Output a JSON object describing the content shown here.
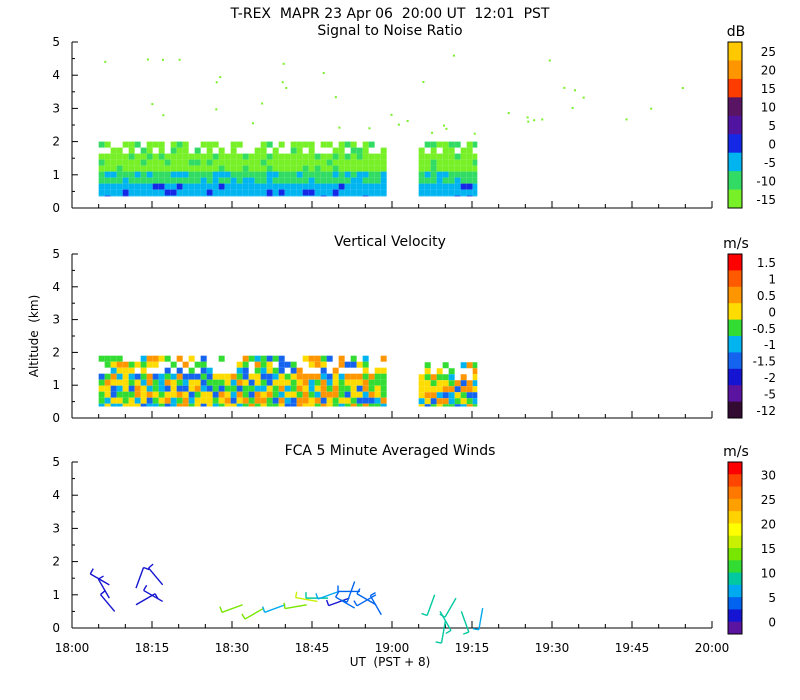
{
  "header": {
    "title": "T-REX  MAPR 23 Apr 06  20:00 UT  12:01  PST"
  },
  "chart_data": [
    {
      "type": "heatmap",
      "title": "Signal to Noise Ratio",
      "ylabel": "",
      "ylim": [
        0,
        5
      ],
      "yticks": [
        "0",
        "1",
        "2",
        "3",
        "4",
        "5"
      ],
      "xlim": [
        "18:00",
        "20:00"
      ],
      "colorbar": {
        "unit": "dB",
        "labels": [
          "25",
          "20",
          "15",
          "10",
          "5",
          "0",
          "-5",
          "-10",
          "-15"
        ],
        "colors": [
          "#ffc800",
          "#ff9600",
          "#ff3c00",
          "#5a1464",
          "#5014a0",
          "#1428e6",
          "#00b4f0",
          "#32dc64",
          "#78f028"
        ]
      },
      "blocks": [
        {
          "x_start": "18:05",
          "x_end": "18:59",
          "alt_bottom": 0.35,
          "alt_top": 2.0
        },
        {
          "x_start": "19:05",
          "x_end": "19:16",
          "alt_bottom": 0.35,
          "alt_top": 2.0
        }
      ]
    },
    {
      "type": "heatmap",
      "title": "Vertical Velocity",
      "ylabel": "Altitude  (km)",
      "ylim": [
        0,
        5
      ],
      "yticks": [
        "0",
        "1",
        "2",
        "3",
        "4",
        "5"
      ],
      "xlim": [
        "18:00",
        "20:00"
      ],
      "colorbar": {
        "unit": "m/s",
        "labels": [
          "1.5",
          "1",
          "0.5",
          "0",
          "-0.5",
          "-1",
          "-1.5",
          "-2",
          "-5",
          "-12"
        ],
        "colors": [
          "#ff0000",
          "#ff5a00",
          "#ff9600",
          "#ffdc00",
          "#32dc32",
          "#00b4f0",
          "#1464f0",
          "#1414d2",
          "#5a14a0",
          "#320a32"
        ]
      },
      "blocks": [
        {
          "x_start": "18:05",
          "x_end": "18:59",
          "alt_bottom": 0.35,
          "alt_top": 1.9
        },
        {
          "x_start": "19:05",
          "x_end": "19:16",
          "alt_bottom": 0.35,
          "alt_top": 1.7
        }
      ]
    },
    {
      "type": "scatter",
      "title": "FCA 5 Minute Averaged Winds",
      "ylabel": "",
      "ylim": [
        0,
        5
      ],
      "yticks": [
        "0",
        "1",
        "2",
        "3",
        "4",
        "5"
      ],
      "xlim": [
        "18:00",
        "20:00"
      ],
      "xticks": [
        "18:00",
        "18:15",
        "18:30",
        "18:45",
        "19:00",
        "19:15",
        "19:30",
        "19:45",
        "20:00"
      ],
      "xlabel": "UT  (PST + 8)",
      "colorbar": {
        "unit": "m/s",
        "labels": [
          "30",
          "25",
          "20",
          "15",
          "10",
          "5",
          "0"
        ],
        "colors": [
          "#ff0000",
          "#ff4600",
          "#ff7800",
          "#ffa000",
          "#ffd200",
          "#ffff00",
          "#c8f000",
          "#78e600",
          "#32dc32",
          "#00c8a0",
          "#00aaf0",
          "#0064f0",
          "#1414d2",
          "#5a14a0"
        ]
      },
      "barbs": [
        {
          "t": "18:07",
          "alt": 1.3,
          "speed": 2,
          "dir": 300
        },
        {
          "t": "18:07",
          "alt": 0.9,
          "speed": 3,
          "dir": 330
        },
        {
          "t": "18:08",
          "alt": 0.5,
          "speed": 3,
          "dir": 320
        },
        {
          "t": "18:12",
          "alt": 1.2,
          "speed": 2,
          "dir": 20
        },
        {
          "t": "18:12",
          "alt": 0.7,
          "speed": 3,
          "dir": 60
        },
        {
          "t": "18:17",
          "alt": 1.3,
          "speed": 2,
          "dir": 320
        },
        {
          "t": "18:17",
          "alt": 0.8,
          "speed": 3,
          "dir": 300
        },
        {
          "t": "18:32",
          "alt": 0.7,
          "speed": 13,
          "dir": 250
        },
        {
          "t": "18:36",
          "alt": 0.6,
          "speed": 13,
          "dir": 240
        },
        {
          "t": "18:40",
          "alt": 0.7,
          "speed": 7,
          "dir": 250
        },
        {
          "t": "18:44",
          "alt": 0.7,
          "speed": 13,
          "dir": 260
        },
        {
          "t": "18:46",
          "alt": 0.8,
          "speed": 15,
          "dir": 280
        },
        {
          "t": "18:48",
          "alt": 0.9,
          "speed": 10,
          "dir": 270
        },
        {
          "t": "18:50",
          "alt": 1.1,
          "speed": 6,
          "dir": 250
        },
        {
          "t": "18:52",
          "alt": 0.9,
          "speed": 3,
          "dir": 250
        },
        {
          "t": "18:53",
          "alt": 0.6,
          "speed": 4,
          "dir": 300
        },
        {
          "t": "18:53",
          "alt": 1.4,
          "speed": 5,
          "dir": 200
        },
        {
          "t": "18:54",
          "alt": 1.1,
          "speed": 5,
          "dir": 270
        },
        {
          "t": "18:57",
          "alt": 1.0,
          "speed": 4,
          "dir": 240
        },
        {
          "t": "18:57",
          "alt": 0.7,
          "speed": 5,
          "dir": 300
        },
        {
          "t": "18:58",
          "alt": 0.4,
          "speed": 5,
          "dir": 330
        },
        {
          "t": "19:08",
          "alt": 1.0,
          "speed": 10,
          "dir": 200
        },
        {
          "t": "19:09",
          "alt": 0.5,
          "speed": 10,
          "dir": 150
        },
        {
          "t": "19:10",
          "alt": 0.2,
          "speed": 10,
          "dir": 190
        },
        {
          "t": "19:12",
          "alt": 0.9,
          "speed": 9,
          "dir": 210
        },
        {
          "t": "19:13",
          "alt": 0.5,
          "speed": 9,
          "dir": 160
        },
        {
          "t": "19:17",
          "alt": 0.6,
          "speed": 8,
          "dir": 190
        }
      ]
    }
  ]
}
